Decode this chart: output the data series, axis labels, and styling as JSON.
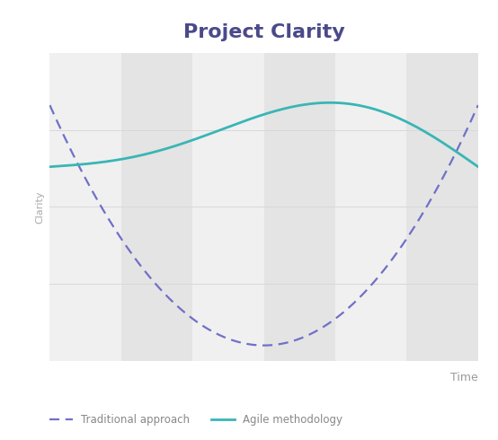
{
  "title": "Project Clarity",
  "title_color": "#4a4a8a",
  "title_fontsize": 16,
  "ylabel": "Clarity",
  "ylabel_color": "#aaaaaa",
  "ylabel_fontsize": 8,
  "xlabel": "Time",
  "xlabel_color": "#999999",
  "xlabel_fontsize": 9,
  "background_color": "#ffffff",
  "plot_bg_color": "#f0f0f0",
  "band_light": "#f0f0f0",
  "band_dark": "#e4e4e4",
  "num_bands": 6,
  "agile_color": "#3ab5b5",
  "traditional_color": "#7070c8",
  "agile_linewidth": 2.0,
  "traditional_linewidth": 1.6,
  "legend_labels": [
    "Traditional approach",
    "Agile methodology"
  ],
  "legend_fontsize": 8.5,
  "grid_color": "#d8d8d8",
  "xlim": [
    0,
    1
  ],
  "ylim": [
    0,
    1
  ]
}
